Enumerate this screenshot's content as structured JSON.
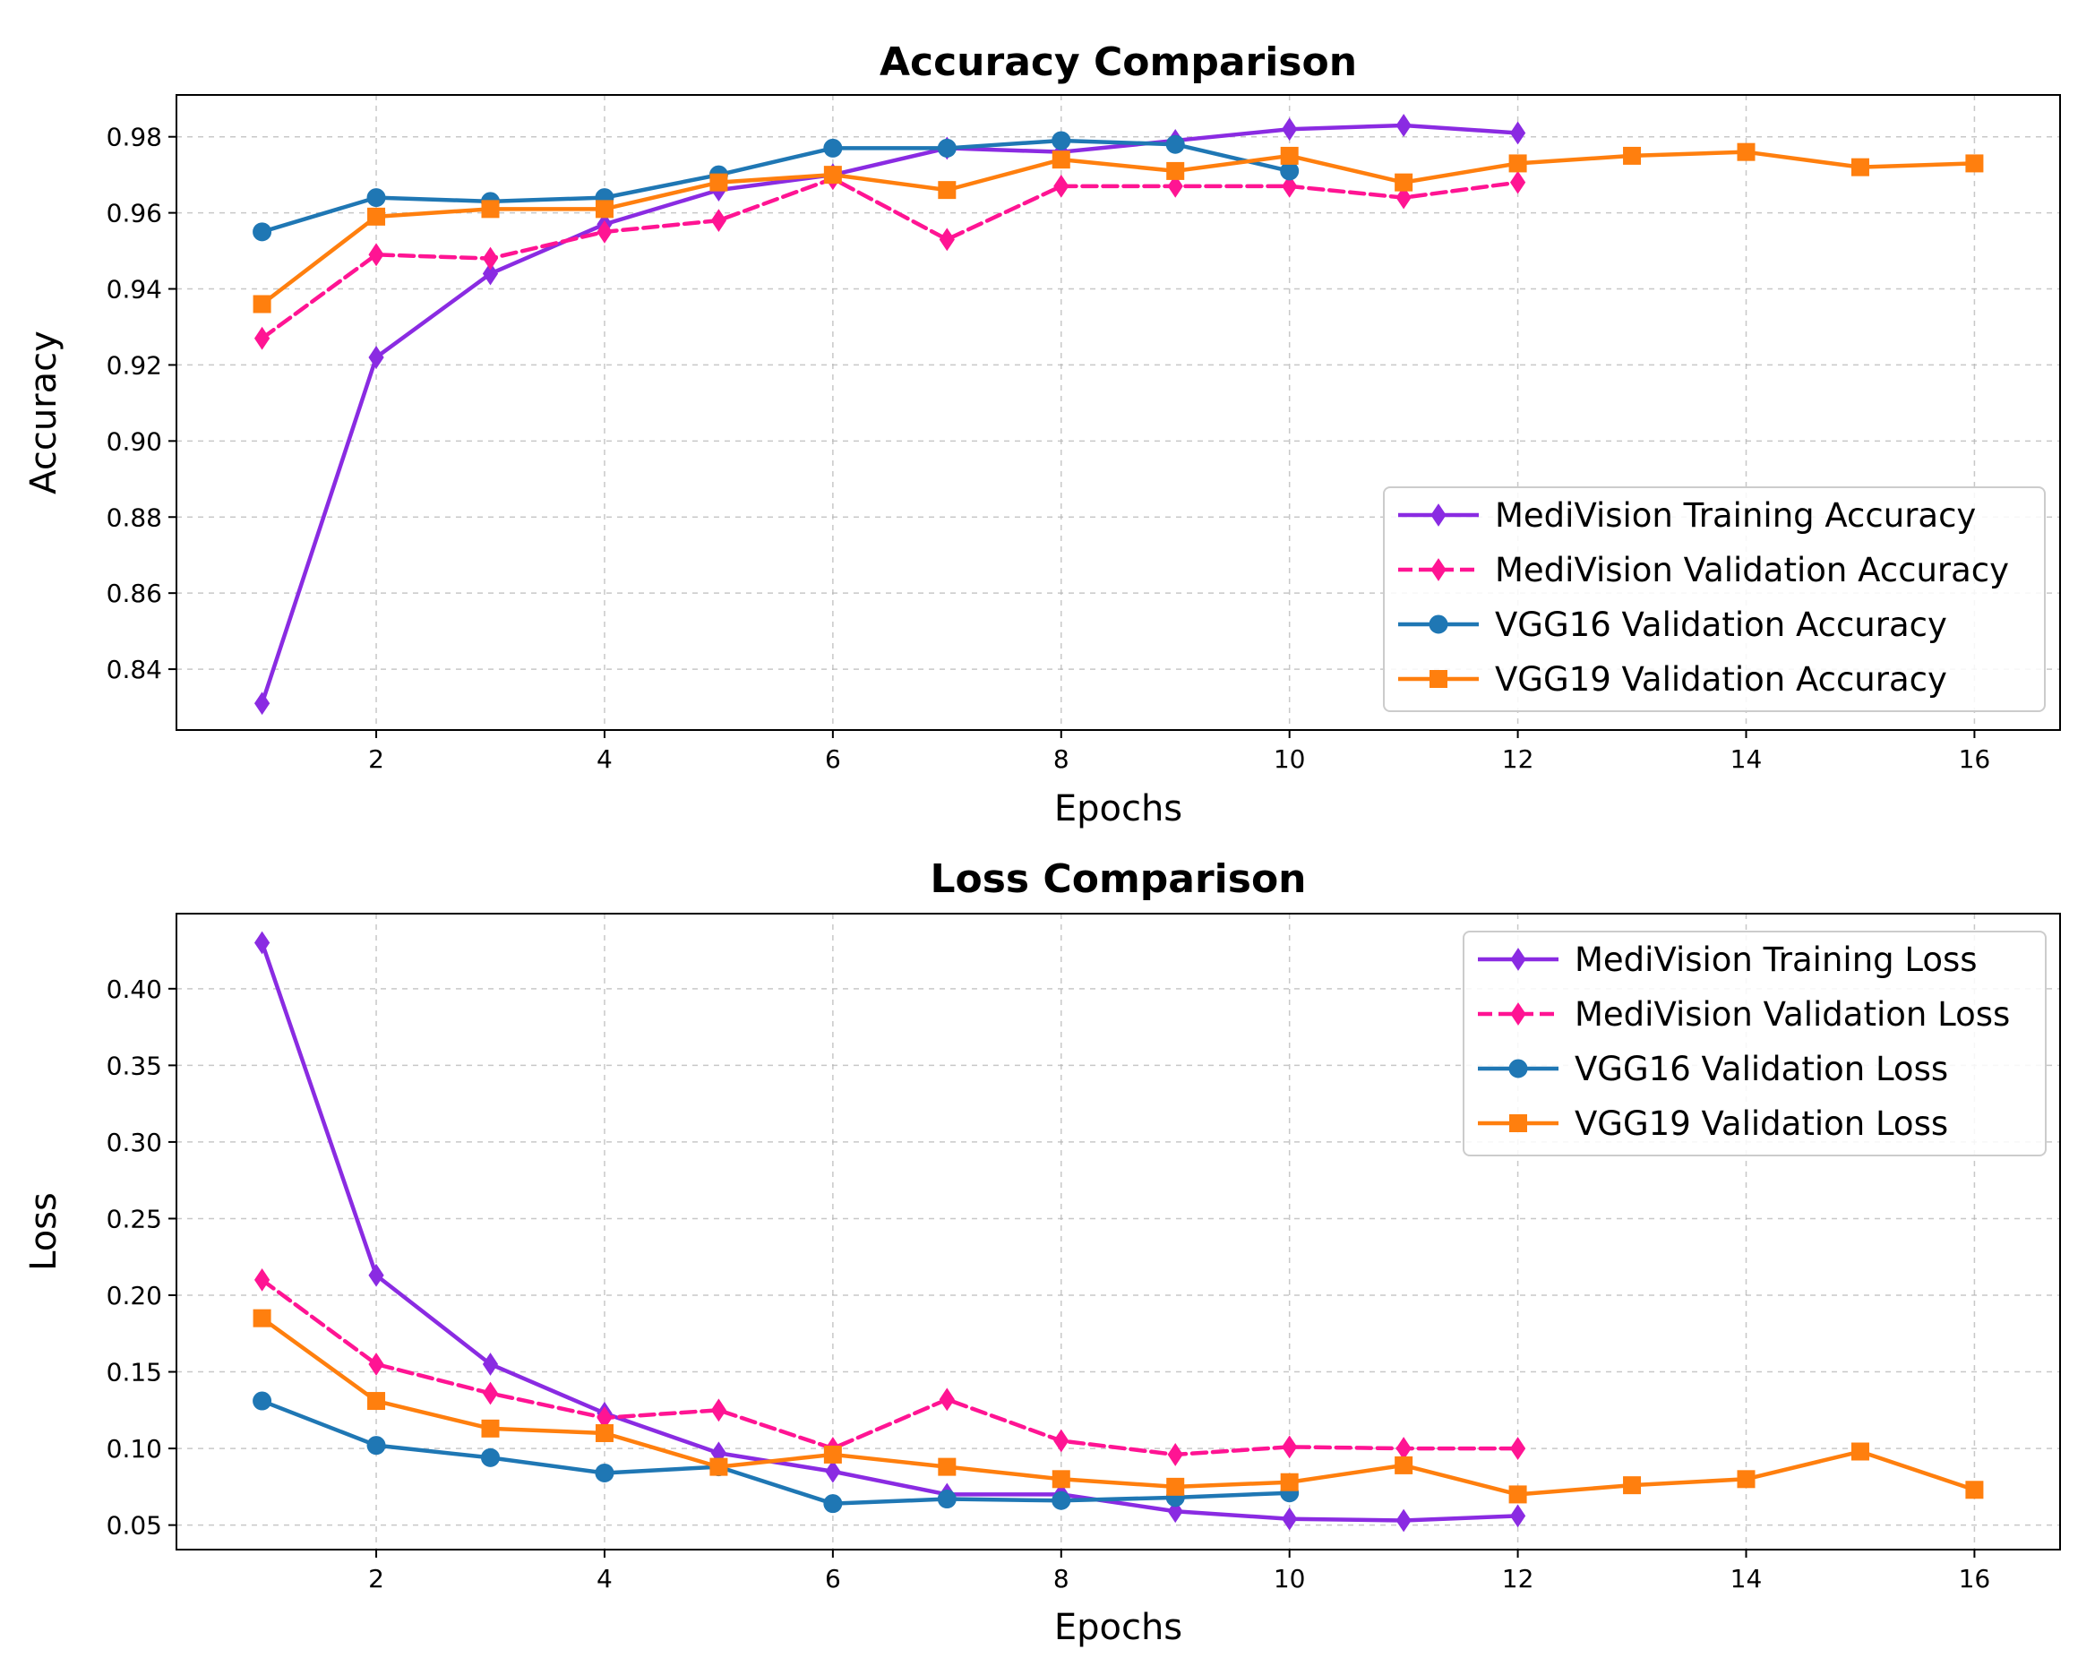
{
  "chart_data": [
    {
      "type": "line",
      "title": "Accuracy Comparison",
      "xlabel": "Epochs",
      "ylabel": "Accuracy",
      "xlim": [
        0.25,
        16.75
      ],
      "ylim": [
        0.824,
        0.991
      ],
      "xticks": [
        2,
        4,
        6,
        8,
        10,
        12,
        14,
        16
      ],
      "xtick_labels": [
        "2",
        "4",
        "6",
        "8",
        "10",
        "12",
        "14",
        "16"
      ],
      "yticks": [
        0.84,
        0.86,
        0.88,
        0.9,
        0.92,
        0.94,
        0.96,
        0.98
      ],
      "ytick_labels": [
        "0.84",
        "0.86",
        "0.88",
        "0.90",
        "0.92",
        "0.94",
        "0.96",
        "0.98"
      ],
      "grid": true,
      "legend_position": "lower-right",
      "series": [
        {
          "name": "MediVision Training Accuracy",
          "color": "#8a2be2",
          "marker": "diamond",
          "dashed": false,
          "x": [
            1,
            2,
            3,
            4,
            5,
            6,
            7,
            8,
            9,
            10,
            11,
            12
          ],
          "y": [
            0.831,
            0.922,
            0.944,
            0.957,
            0.966,
            0.97,
            0.977,
            0.976,
            0.979,
            0.982,
            0.983,
            0.981
          ]
        },
        {
          "name": "MediVision Validation Accuracy",
          "color": "#ff1493",
          "marker": "diamond",
          "dashed": true,
          "x": [
            1,
            2,
            3,
            4,
            5,
            6,
            7,
            8,
            9,
            10,
            11,
            12
          ],
          "y": [
            0.927,
            0.949,
            0.948,
            0.955,
            0.958,
            0.969,
            0.953,
            0.967,
            0.967,
            0.967,
            0.964,
            0.968
          ]
        },
        {
          "name": "VGG16 Validation Accuracy",
          "color": "#1f77b4",
          "marker": "circle",
          "dashed": false,
          "x": [
            1,
            2,
            3,
            4,
            5,
            6,
            7,
            8,
            9,
            10
          ],
          "y": [
            0.955,
            0.964,
            0.963,
            0.964,
            0.97,
            0.977,
            0.977,
            0.979,
            0.978,
            0.971
          ]
        },
        {
          "name": "VGG19 Validation Accuracy",
          "color": "#ff7f0e",
          "marker": "square",
          "dashed": false,
          "x": [
            1,
            2,
            3,
            4,
            5,
            6,
            7,
            8,
            9,
            10,
            11,
            12,
            13,
            14,
            15,
            16
          ],
          "y": [
            0.936,
            0.959,
            0.961,
            0.961,
            0.968,
            0.97,
            0.966,
            0.974,
            0.971,
            0.975,
            0.968,
            0.973,
            0.975,
            0.976,
            0.972,
            0.973
          ]
        }
      ]
    },
    {
      "type": "line",
      "title": "Loss Comparison",
      "xlabel": "Epochs",
      "ylabel": "Loss",
      "xlim": [
        0.25,
        16.75
      ],
      "ylim": [
        0.034,
        0.449
      ],
      "xticks": [
        2,
        4,
        6,
        8,
        10,
        12,
        14,
        16
      ],
      "xtick_labels": [
        "2",
        "4",
        "6",
        "8",
        "10",
        "12",
        "14",
        "16"
      ],
      "yticks": [
        0.05,
        0.1,
        0.15,
        0.2,
        0.25,
        0.3,
        0.35,
        0.4
      ],
      "ytick_labels": [
        "0.05",
        "0.10",
        "0.15",
        "0.20",
        "0.25",
        "0.30",
        "0.35",
        "0.40"
      ],
      "grid": true,
      "legend_position": "upper-right",
      "series": [
        {
          "name": "MediVision Training Loss",
          "color": "#8a2be2",
          "marker": "diamond",
          "dashed": false,
          "x": [
            1,
            2,
            3,
            4,
            5,
            6,
            7,
            8,
            9,
            10,
            11,
            12
          ],
          "y": [
            0.43,
            0.213,
            0.155,
            0.123,
            0.097,
            0.085,
            0.07,
            0.07,
            0.059,
            0.054,
            0.053,
            0.056
          ]
        },
        {
          "name": "MediVision Validation Loss",
          "color": "#ff1493",
          "marker": "diamond",
          "dashed": true,
          "x": [
            1,
            2,
            3,
            4,
            5,
            6,
            7,
            8,
            9,
            10,
            11,
            12
          ],
          "y": [
            0.21,
            0.155,
            0.136,
            0.12,
            0.125,
            0.1,
            0.132,
            0.105,
            0.096,
            0.101,
            0.1,
            0.1
          ]
        },
        {
          "name": "VGG16 Validation Loss",
          "color": "#1f77b4",
          "marker": "circle",
          "dashed": false,
          "x": [
            1,
            2,
            3,
            4,
            5,
            6,
            7,
            8,
            9,
            10
          ],
          "y": [
            0.131,
            0.102,
            0.094,
            0.084,
            0.088,
            0.064,
            0.067,
            0.066,
            0.068,
            0.071
          ]
        },
        {
          "name": "VGG19 Validation Loss",
          "color": "#ff7f0e",
          "marker": "square",
          "dashed": false,
          "x": [
            1,
            2,
            3,
            4,
            5,
            6,
            7,
            8,
            9,
            10,
            11,
            12,
            13,
            14,
            15,
            16
          ],
          "y": [
            0.185,
            0.131,
            0.113,
            0.11,
            0.088,
            0.096,
            0.088,
            0.08,
            0.075,
            0.078,
            0.089,
            0.07,
            0.076,
            0.08,
            0.098,
            0.073
          ]
        }
      ]
    }
  ]
}
